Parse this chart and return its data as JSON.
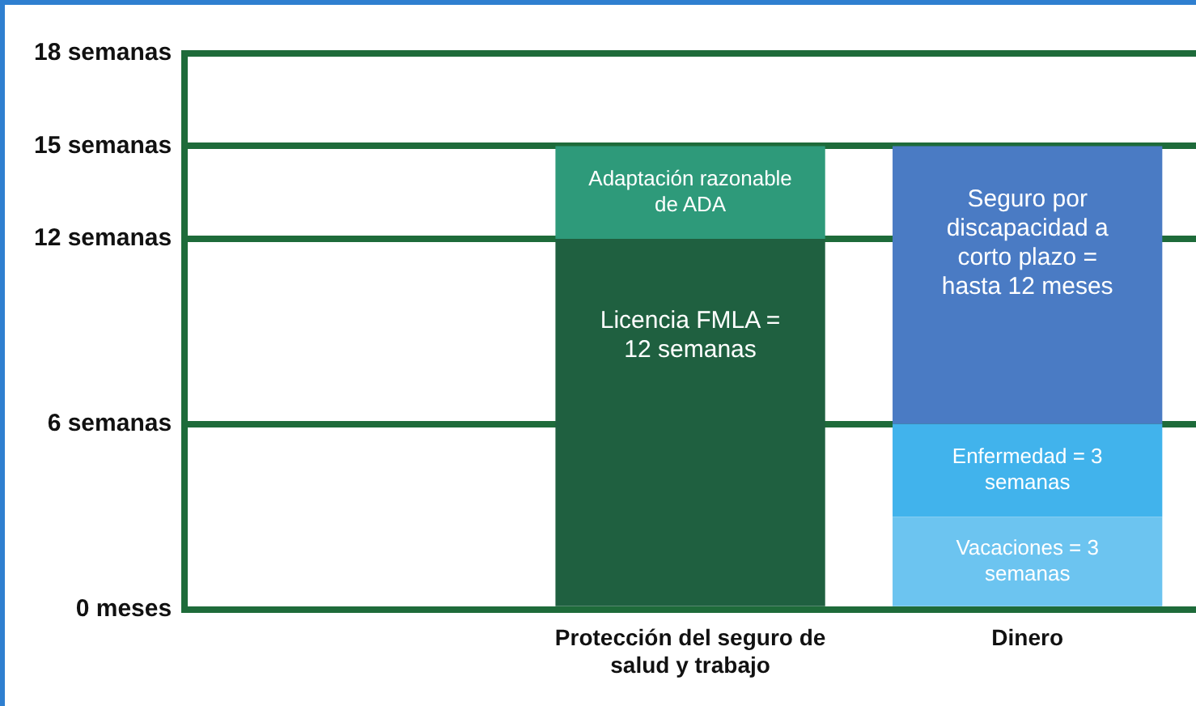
{
  "chart_data": {
    "type": "bar",
    "stacked": true,
    "categories": [
      null,
      "Protección del seguro de salud y trabajo",
      "Dinero"
    ],
    "series": [
      {
        "colors": [
          "#1f6040",
          "#1f6040",
          "#6cc4f0"
        ],
        "values": [
          null,
          12,
          3
        ],
        "value_labels": [
          null,
          "Licencia FMLA = 12 semanas",
          "Vacaciones = 3 semanas"
        ]
      },
      {
        "colors": [
          "#2e9a7a",
          "#2e9a7a",
          "#41b3ec"
        ],
        "values": [
          null,
          3,
          3
        ],
        "value_labels": [
          null,
          "Adaptación razonable de ADA",
          "Enfermedad = 3 semanas"
        ]
      },
      {
        "colors": [
          "#4a7bc4",
          "#4a7bc4",
          "#4a7bc4"
        ],
        "values": [
          null,
          null,
          9
        ],
        "value_labels": [
          null,
          null,
          "Seguro por discapacidad a corto plazo = hasta 12 meses"
        ]
      }
    ],
    "ylim": [
      0,
      18
    ],
    "yticks": [
      {
        "value": 0,
        "label": "0 meses"
      },
      {
        "value": 6,
        "label": "6 semanas"
      },
      {
        "value": 12,
        "label": "12 semanas"
      },
      {
        "value": 15,
        "label": "15 semanas"
      },
      {
        "value": 18,
        "label": "18 semanas"
      }
    ],
    "grid": "y",
    "legend": false
  }
}
